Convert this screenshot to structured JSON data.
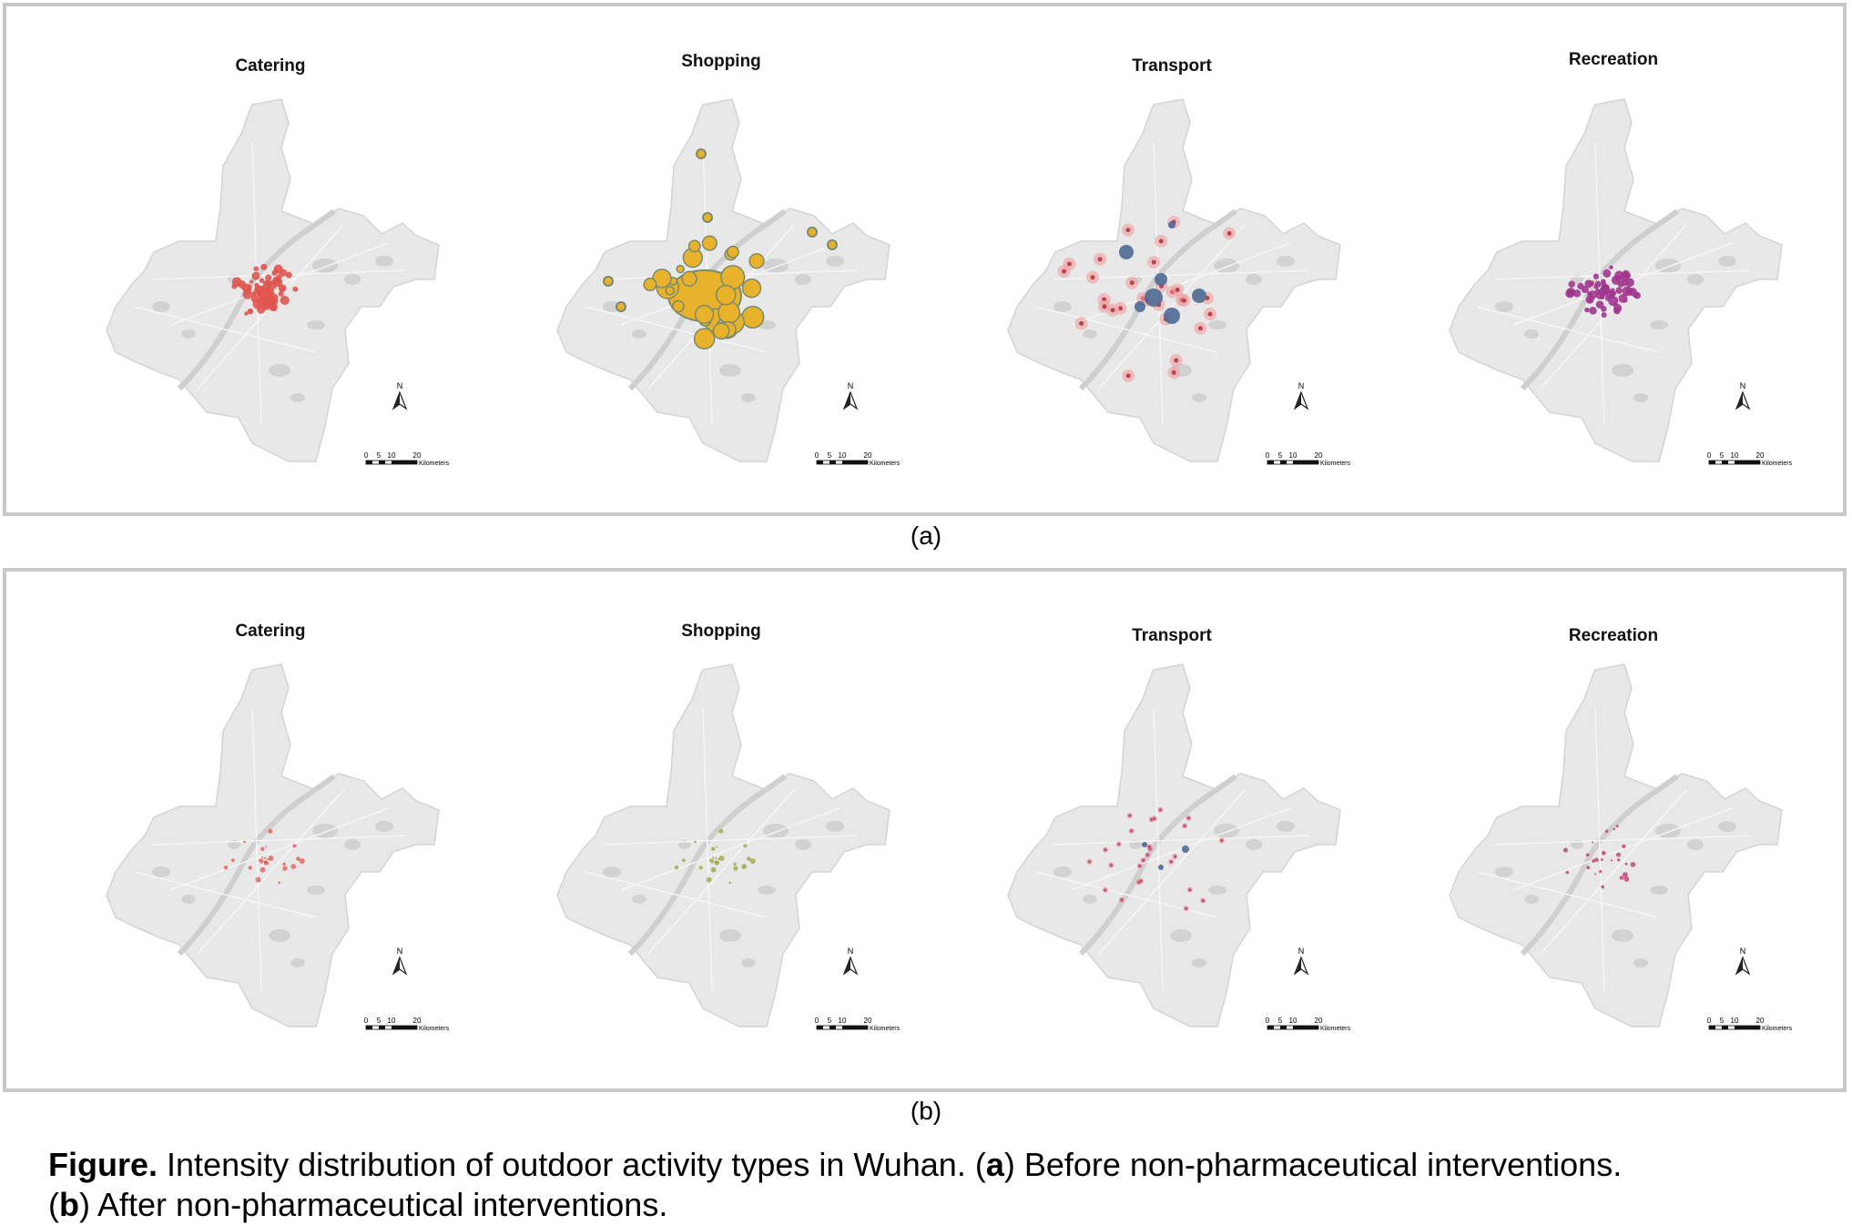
{
  "figure": {
    "panels": [
      {
        "id": "a",
        "label": "(a)",
        "maps": [
          {
            "title": "Catering",
            "color": "#e0554f",
            "style": "dots",
            "intensity": "high"
          },
          {
            "title": "Shopping",
            "color": "#e8b32a",
            "outline": "#7a8a70",
            "style": "blobs",
            "intensity": "high"
          },
          {
            "title": "Transport",
            "color": "#4d6a93",
            "halo": "#f0a0a0",
            "style": "halo",
            "intensity": "high"
          },
          {
            "title": "Recreation",
            "color": "#a2358f",
            "style": "dots",
            "intensity": "high"
          }
        ]
      },
      {
        "id": "b",
        "label": "(b)",
        "maps": [
          {
            "title": "Catering",
            "color": "#e0554f",
            "style": "dots",
            "intensity": "low"
          },
          {
            "title": "Shopping",
            "color": "#9aa23c",
            "style": "dots",
            "intensity": "low"
          },
          {
            "title": "Transport",
            "color": "#4d6a93",
            "halo": "#d97090",
            "style": "halo",
            "intensity": "low"
          },
          {
            "title": "Recreation",
            "color": "#c0306a",
            "style": "dots",
            "intensity": "low"
          }
        ]
      }
    ],
    "north_label": "N",
    "scale": {
      "ticks": [
        "0",
        "5",
        "10",
        "20"
      ],
      "unit": "Kilometers"
    },
    "caption": {
      "lead": "Figure.",
      "text": " Intensity distribution of outdoor activity types in Wuhan. (",
      "a_letter": "a",
      "a_text": ") Before non-pharmaceutical interventions.",
      "b_open": "(",
      "b_letter": "b",
      "b_text": ") After non-pharmaceutical interventions."
    }
  }
}
